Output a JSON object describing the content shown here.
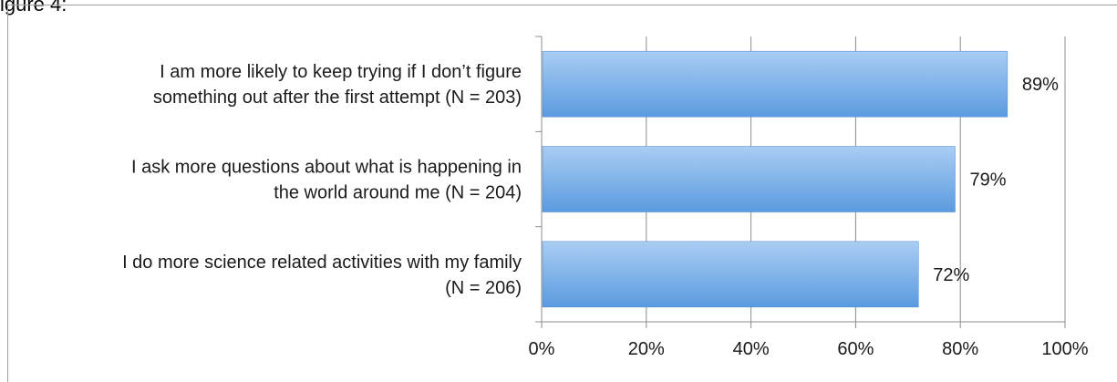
{
  "header_fragment": "igure 4:",
  "chart_data": {
    "type": "bar",
    "orientation": "horizontal",
    "categories": [
      [
        "I am more likely to keep trying if I don’t figure",
        "something out after the first attempt (N = 203)"
      ],
      [
        "I ask more questions about what is happening in",
        "the world around me (N = 204)"
      ],
      [
        "I do more science related activities with my family",
        "(N = 206)"
      ]
    ],
    "values": [
      89,
      79,
      72
    ],
    "value_labels": [
      "89%",
      "79%",
      "72%"
    ],
    "xlim": [
      0,
      100
    ],
    "xticks": [
      0,
      20,
      40,
      60,
      80,
      100
    ],
    "xtick_labels": [
      "0%",
      "20%",
      "40%",
      "60%",
      "80%",
      "100%"
    ],
    "grid": "vertical",
    "colors": {
      "bar_top": "#a9cdf3",
      "bar_bottom": "#5b9be0",
      "bar_edge": "#4a86cf",
      "gridline": "#8c8c8c",
      "axis": "#8c8c8c"
    }
  }
}
